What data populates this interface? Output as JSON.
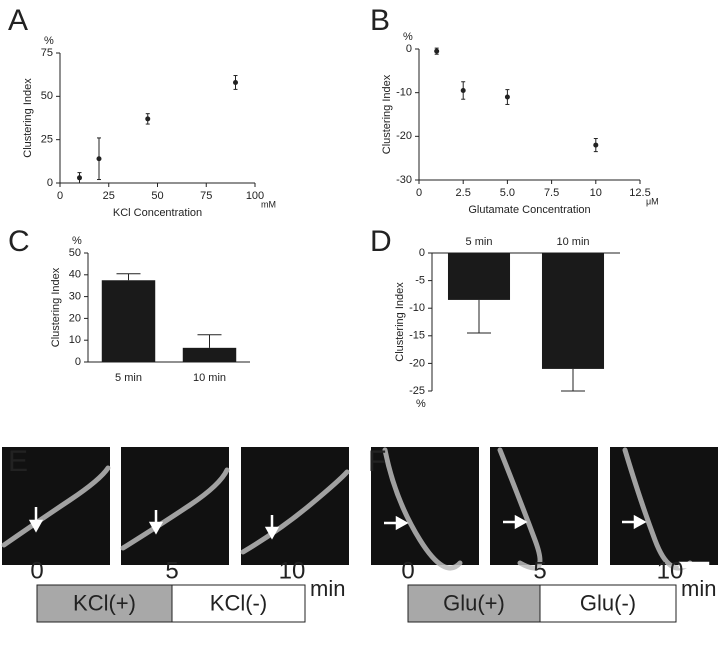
{
  "chart_data": [
    {
      "panel": "A",
      "type": "scatter",
      "x": [
        10,
        20,
        45,
        90
      ],
      "values": [
        3,
        14,
        37,
        58
      ],
      "errors": [
        3,
        12,
        3,
        4
      ],
      "xlim": [
        0,
        100
      ],
      "xticks": [
        0,
        25,
        50,
        75,
        100
      ],
      "ylim": [
        0,
        75
      ],
      "yticks": [
        0,
        25,
        50,
        75
      ],
      "y_label": "Clustering Index",
      "x_label": "KCl Concentration",
      "y_unit": "%",
      "x_unit": "mM",
      "color": "#222222"
    },
    {
      "panel": "B",
      "type": "scatter",
      "x": [
        1,
        2.5,
        5,
        10
      ],
      "values": [
        -0.5,
        -9.5,
        -11,
        -22
      ],
      "errors": [
        0.7,
        2,
        1.7,
        1.5
      ],
      "xlim": [
        0,
        12.5
      ],
      "xticks": [
        0,
        2.5,
        {
          "value": 5,
          "label": "5.0"
        },
        7.5,
        10,
        12.5
      ],
      "ylim": [
        -30,
        0
      ],
      "yticks": [
        -30,
        -20,
        -10,
        0
      ],
      "y_label": "Clustering Index",
      "x_label": "Glutamate Concentration",
      "y_unit": "%",
      "x_unit": "μM",
      "color": "#222222"
    },
    {
      "panel": "C",
      "type": "bar",
      "categories": [
        "5 min",
        "10 min"
      ],
      "values": [
        37.5,
        6.5
      ],
      "errors": [
        3,
        6
      ],
      "ylim": [
        0,
        50
      ],
      "yticks": [
        0,
        10,
        20,
        30,
        40,
        50
      ],
      "y_label": "Clustering Index",
      "y_unit": "%",
      "color": "#1a1a1a"
    },
    {
      "panel": "D",
      "type": "bar",
      "categories": [
        "5 min",
        "10 min"
      ],
      "values": [
        -8.5,
        -21
      ],
      "errors": [
        6,
        4
      ],
      "ylim": [
        -25,
        0
      ],
      "yticks": [
        -25,
        -20,
        -15,
        -10,
        -5,
        0
      ],
      "y_label": "Clustering Index",
      "y_unit": "%",
      "color": "#1a1a1a"
    }
  ],
  "image_panels": [
    {
      "panel": "E",
      "ticks": [
        "0",
        "5",
        "10"
      ],
      "unit": "min",
      "segments": [
        "KCl(+)",
        "KCl(-)"
      ]
    },
    {
      "panel": "F",
      "ticks": [
        "0",
        "5",
        "10"
      ],
      "unit": "min",
      "segments": [
        "Glu(+)",
        "Glu(-)"
      ]
    }
  ]
}
